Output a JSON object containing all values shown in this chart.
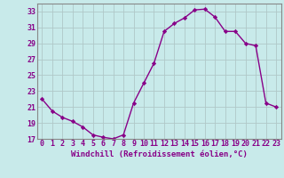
{
  "x": [
    0,
    1,
    2,
    3,
    4,
    5,
    6,
    7,
    8,
    9,
    10,
    11,
    12,
    13,
    14,
    15,
    16,
    17,
    18,
    19,
    20,
    21,
    22,
    23
  ],
  "y": [
    22.0,
    20.5,
    19.7,
    19.2,
    18.5,
    17.5,
    17.2,
    17.0,
    17.5,
    21.5,
    24.0,
    26.5,
    30.5,
    31.5,
    32.2,
    33.2,
    33.3,
    32.3,
    30.5,
    30.5,
    29.0,
    28.7,
    21.5,
    21.0
  ],
  "line_color": "#880088",
  "marker": "D",
  "marker_size": 2.2,
  "bg_color": "#c8eaea",
  "grid_color": "#b0c8c8",
  "xlabel": "Windchill (Refroidissement éolien,°C)",
  "ylim": [
    17,
    34
  ],
  "xlim": [
    -0.5,
    23.5
  ],
  "yticks": [
    17,
    19,
    21,
    23,
    25,
    27,
    29,
    31,
    33
  ],
  "xticks": [
    0,
    1,
    2,
    3,
    4,
    5,
    6,
    7,
    8,
    9,
    10,
    11,
    12,
    13,
    14,
    15,
    16,
    17,
    18,
    19,
    20,
    21,
    22,
    23
  ],
  "xlabel_color": "#880088",
  "tick_color": "#880088",
  "label_fontsize": 6.5,
  "tick_fontsize": 6.0,
  "line_width": 1.0,
  "spine_color": "#888888"
}
